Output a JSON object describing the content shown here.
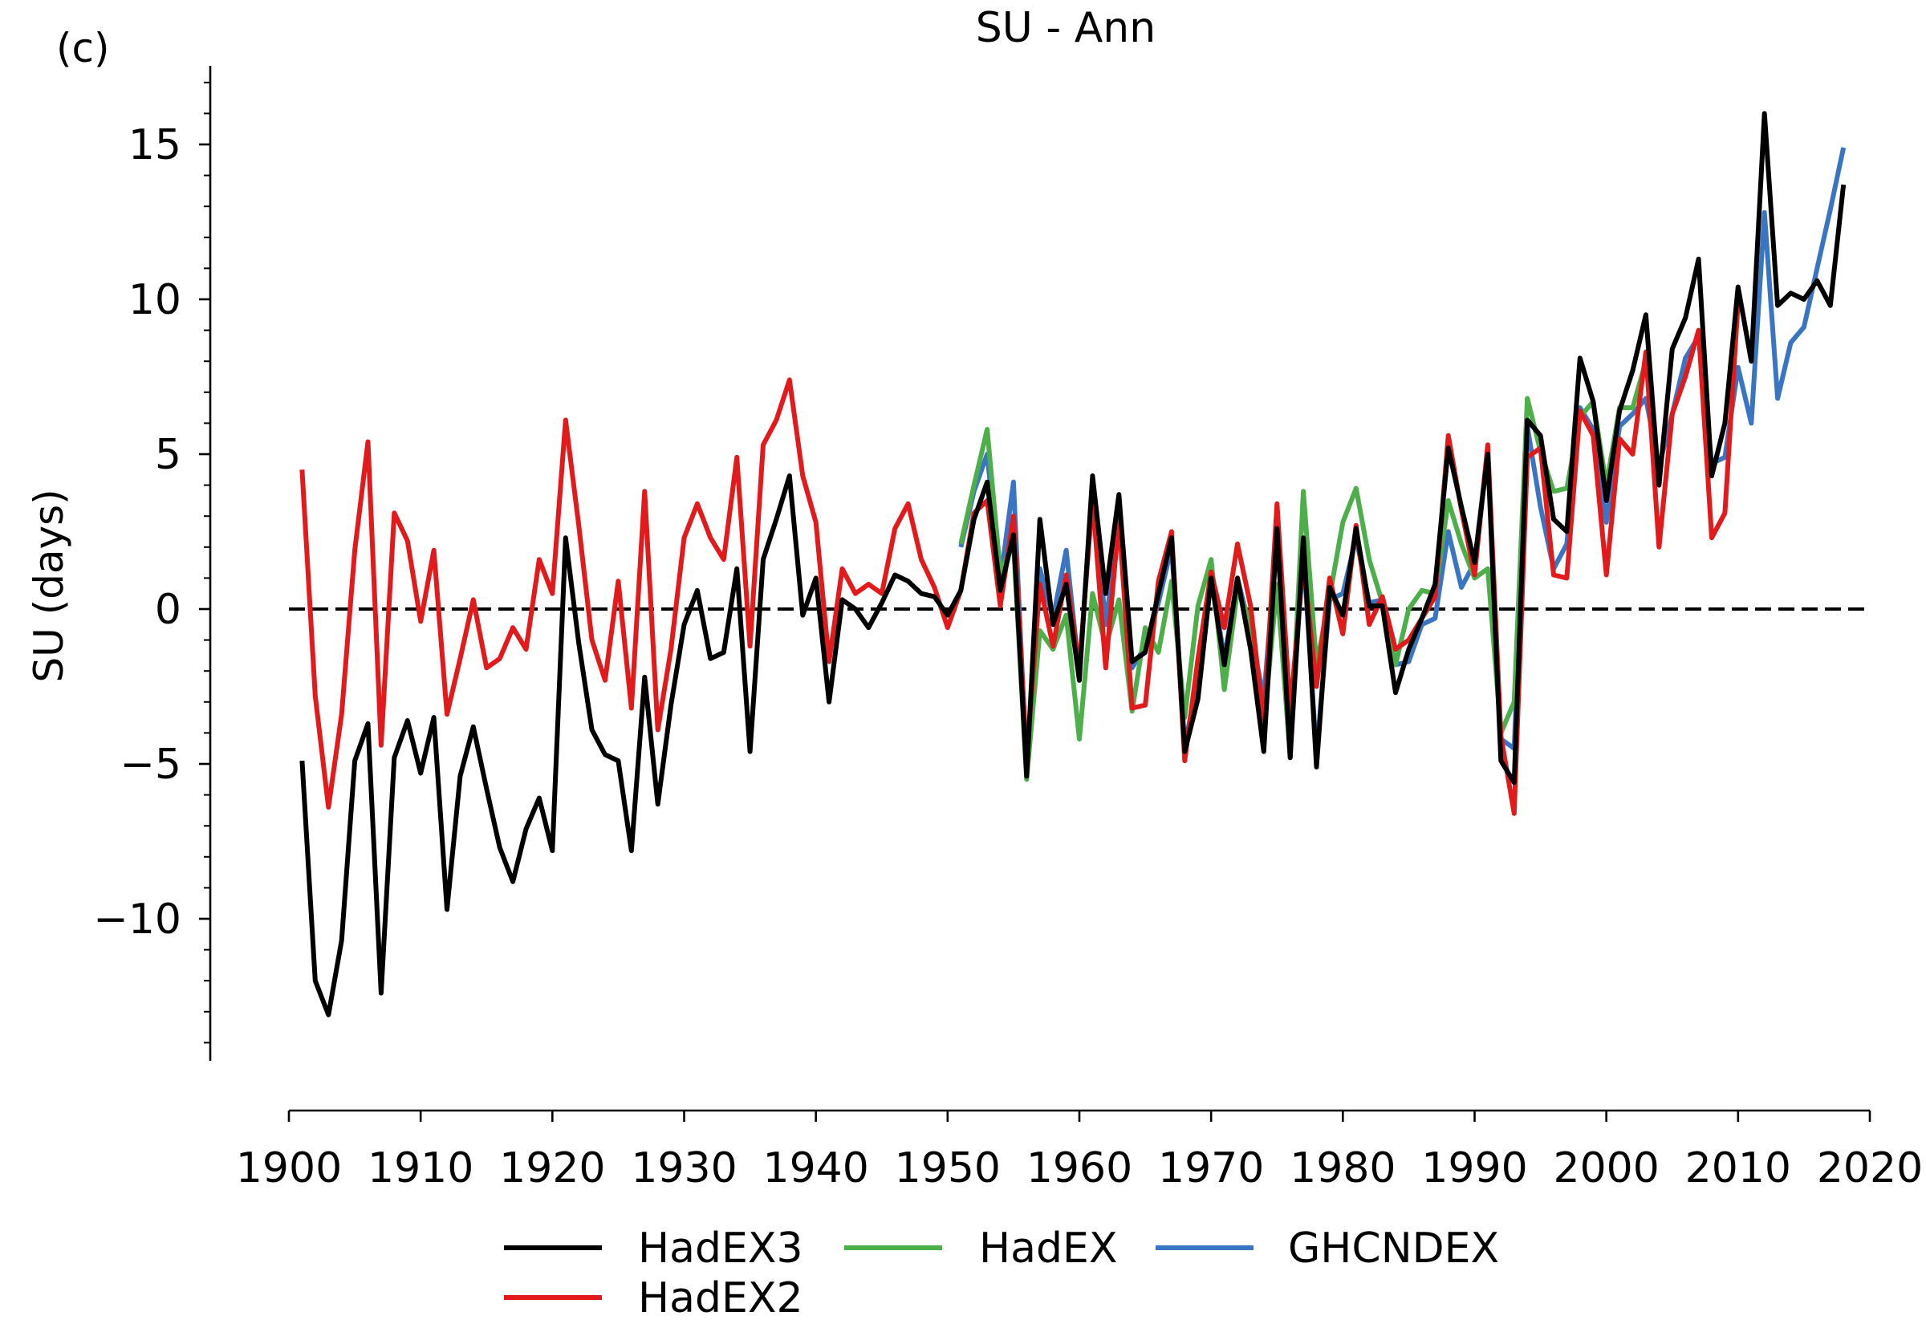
{
  "panel_label": "(c)",
  "chart_data": {
    "type": "line",
    "title": "SU - Ann",
    "xlabel": "",
    "ylabel": "SU (days)",
    "xlim": [
      1900,
      2020
    ],
    "ylim": [
      -14.5,
      17.5
    ],
    "xticks": [
      1900,
      1910,
      1920,
      1930,
      1940,
      1950,
      1960,
      1970,
      1980,
      1990,
      2000,
      2010,
      2020
    ],
    "yticks": [
      -10,
      -5,
      0,
      5,
      10,
      15
    ],
    "ytick_labels": [
      "−10",
      "−5",
      "0",
      "5",
      "10",
      "15"
    ],
    "reference_line": {
      "y": 0,
      "style": "dashed",
      "color": "#000000"
    },
    "grid": false,
    "legend": {
      "placement": "bottom-center",
      "ncol": 3
    },
    "series": [
      {
        "name": "HadEX3",
        "color": "#000000",
        "x": [
          1901,
          1902,
          1903,
          1904,
          1905,
          1906,
          1907,
          1908,
          1909,
          1910,
          1911,
          1912,
          1913,
          1914,
          1915,
          1916,
          1917,
          1918,
          1919,
          1920,
          1921,
          1922,
          1923,
          1924,
          1925,
          1926,
          1927,
          1928,
          1929,
          1930,
          1931,
          1932,
          1933,
          1934,
          1935,
          1936,
          1937,
          1938,
          1939,
          1940,
          1941,
          1942,
          1943,
          1944,
          1945,
          1946,
          1947,
          1948,
          1949,
          1950,
          1951,
          1952,
          1953,
          1954,
          1955,
          1956,
          1957,
          1958,
          1959,
          1960,
          1961,
          1962,
          1963,
          1964,
          1965,
          1966,
          1967,
          1968,
          1969,
          1970,
          1971,
          1972,
          1973,
          1974,
          1975,
          1976,
          1977,
          1978,
          1979,
          1980,
          1981,
          1982,
          1983,
          1984,
          1985,
          1986,
          1987,
          1988,
          1989,
          1990,
          1991,
          1992,
          1993,
          1994,
          1995,
          1996,
          1997,
          1998,
          1999,
          2000,
          2001,
          2002,
          2003,
          2004,
          2005,
          2006,
          2007,
          2008,
          2009,
          2010,
          2011,
          2012,
          2013,
          2014,
          2015,
          2016,
          2017,
          2018
        ],
        "y": [
          -4.9,
          -12,
          -13.1,
          -10.7,
          -4.9,
          -3.7,
          -12.4,
          -4.8,
          -3.6,
          -5.3,
          -3.5,
          -9.7,
          -5.4,
          -3.8,
          -5.8,
          -7.7,
          -8.8,
          -7.1,
          -6.1,
          -7.8,
          2.3,
          -1.1,
          -3.9,
          -4.7,
          -4.9,
          -7.8,
          -2.2,
          -6.3,
          -3.1,
          -0.5,
          0.6,
          -1.6,
          -1.4,
          1.3,
          -4.6,
          1.6,
          2.9,
          4.3,
          -0.2,
          1,
          -3,
          0.3,
          0,
          -0.6,
          0.2,
          1.1,
          0.9,
          0.5,
          0.4,
          -0.2,
          0.6,
          2.9,
          4.1,
          0.6,
          2.4,
          -5.4,
          2.9,
          -0.5,
          0.8,
          -2.3,
          4.3,
          0.5,
          3.7,
          -1.7,
          -1.4,
          0.5,
          2.3,
          -4.6,
          -2.9,
          1,
          -1.8,
          1,
          -1.3,
          -4.6,
          2.6,
          -4.8,
          2.3,
          -5.1,
          0.7,
          -0.2,
          2.6,
          0.1,
          0.1,
          -2.7,
          -1.3,
          -0.3,
          0.8,
          5.2,
          3.3,
          1.5,
          5,
          -4.9,
          -5.6,
          6.1,
          5.6,
          2.9,
          2.5,
          8.1,
          6.7,
          3.5,
          6.4,
          7.7,
          9.5,
          4,
          8.4,
          9.4,
          11.3,
          4.3,
          6,
          10.4,
          8,
          16,
          9.8,
          10.2,
          10,
          10.6,
          9.8,
          13.7
        ]
      },
      {
        "name": "HadEX2",
        "color": "#e31a1c",
        "x": [
          1901,
          1902,
          1903,
          1904,
          1905,
          1906,
          1907,
          1908,
          1909,
          1910,
          1911,
          1912,
          1913,
          1914,
          1915,
          1916,
          1917,
          1918,
          1919,
          1920,
          1921,
          1922,
          1923,
          1924,
          1925,
          1926,
          1927,
          1928,
          1929,
          1930,
          1931,
          1932,
          1933,
          1934,
          1935,
          1936,
          1937,
          1938,
          1939,
          1940,
          1941,
          1942,
          1943,
          1944,
          1945,
          1946,
          1947,
          1948,
          1949,
          1950,
          1951,
          1952,
          1953,
          1954,
          1955,
          1956,
          1957,
          1958,
          1959,
          1960,
          1961,
          1962,
          1963,
          1964,
          1965,
          1966,
          1967,
          1968,
          1969,
          1970,
          1971,
          1972,
          1973,
          1974,
          1975,
          1976,
          1977,
          1978,
          1979,
          1980,
          1981,
          1982,
          1983,
          1984,
          1985,
          1986,
          1987,
          1988,
          1989,
          1990,
          1991,
          1992,
          1993,
          1994,
          1995,
          1996,
          1997,
          1998,
          1999,
          2000,
          2001,
          2002,
          2003,
          2004,
          2005,
          2006,
          2007,
          2008,
          2009,
          2010
        ],
        "y": [
          4.5,
          -2.8,
          -6.4,
          -3.4,
          1.9,
          5.4,
          -4.4,
          3.1,
          2.2,
          -0.4,
          1.9,
          -3.4,
          -1.6,
          0.3,
          -1.9,
          -1.6,
          -0.6,
          -1.3,
          1.6,
          0.5,
          6.1,
          2.7,
          -1,
          -2.3,
          0.9,
          -3.2,
          3.8,
          -3.9,
          -1.3,
          2.3,
          3.4,
          2.3,
          1.6,
          4.9,
          -1.2,
          5.3,
          6.1,
          7.4,
          4.3,
          2.8,
          -1.7,
          1.3,
          0.5,
          0.8,
          0.5,
          2.6,
          3.4,
          1.6,
          0.7,
          -0.6,
          0.6,
          3.1,
          3.5,
          0.1,
          3,
          -4.8,
          0.8,
          -1.2,
          1.1,
          -1.9,
          3.6,
          -1.9,
          2.9,
          -3.2,
          -3.1,
          0.9,
          2.5,
          -4.9,
          -1.6,
          1.2,
          -0.6,
          2.1,
          0.1,
          -3.7,
          3.4,
          -3.3,
          1.5,
          -2.5,
          1,
          -0.8,
          2.7,
          -0.5,
          0.4,
          -1.3,
          -1,
          -0.3,
          0.4,
          5.6,
          3.2,
          1.1,
          5.3,
          -4.1,
          -6.6,
          4.9,
          5.2,
          1.1,
          1,
          6.4,
          5.6,
          1.1,
          5.5,
          5,
          8.3,
          2,
          6.3,
          7.5,
          9,
          2.3,
          3.1,
          9.9
        ]
      },
      {
        "name": "HadEX",
        "color": "#4daf4a",
        "x": [
          1951,
          1952,
          1953,
          1954,
          1955,
          1956,
          1957,
          1958,
          1959,
          1960,
          1961,
          1962,
          1963,
          1964,
          1965,
          1966,
          1967,
          1968,
          1969,
          1970,
          1971,
          1972,
          1973,
          1974,
          1975,
          1976,
          1977,
          1978,
          1979,
          1980,
          1981,
          1982,
          1983,
          1984,
          1985,
          1986,
          1987,
          1988,
          1989,
          1990,
          1991,
          1992,
          1993,
          1994,
          1995,
          1996,
          1997,
          1998,
          1999,
          2000,
          2001,
          2002,
          2003
        ],
        "y": [
          2.1,
          4,
          5.8,
          1.2,
          2.1,
          -5.5,
          -0.7,
          -1.3,
          -0.2,
          -4.2,
          0.5,
          -1.2,
          0.3,
          -3.3,
          -0.6,
          -1.4,
          0.9,
          -3.5,
          0.1,
          1.6,
          -2.6,
          0.6,
          -0.4,
          -3.8,
          0.8,
          -4.8,
          3.8,
          -1.8,
          0.4,
          2.8,
          3.9,
          1.6,
          0.2,
          -1.8,
          0,
          0.6,
          0.5,
          3.5,
          2.1,
          1,
          1.3,
          -4,
          -3,
          6.8,
          5.1,
          3.8,
          3.9,
          6.2,
          6.7,
          4,
          6.5,
          6.5,
          8
        ]
      },
      {
        "name": "GHCNDEX",
        "color": "#3a75c4",
        "x": [
          1951,
          1952,
          1953,
          1954,
          1955,
          1956,
          1957,
          1958,
          1959,
          1960,
          1961,
          1962,
          1963,
          1964,
          1965,
          1966,
          1967,
          1968,
          1969,
          1970,
          1971,
          1972,
          1973,
          1974,
          1975,
          1976,
          1977,
          1978,
          1979,
          1980,
          1981,
          1982,
          1983,
          1984,
          1985,
          1986,
          1987,
          1988,
          1989,
          1990,
          1991,
          1992,
          1993,
          1994,
          1995,
          1996,
          1997,
          1998,
          1999,
          2000,
          2001,
          2002,
          2003,
          2004,
          2005,
          2006,
          2007,
          2008,
          2009,
          2010,
          2011,
          2012,
          2013,
          2014,
          2015,
          2016,
          2017,
          2018
        ],
        "y": [
          2,
          3.8,
          5,
          0.9,
          4.1,
          -5.2,
          1.3,
          -0.3,
          1.9,
          -2.1,
          4,
          -0.5,
          2.8,
          -1.9,
          -1.2,
          0.2,
          2,
          -4.4,
          -2.3,
          1.1,
          -1.6,
          1,
          -0.7,
          -2.9,
          2.4,
          -4.3,
          1.8,
          -4.7,
          0.3,
          0.5,
          2.3,
          0.2,
          0.3,
          -1.8,
          -1.7,
          -0.5,
          -0.3,
          2.5,
          0.7,
          1.5,
          5.1,
          -4.2,
          -4.5,
          5.9,
          3.3,
          1.3,
          2.1,
          6.5,
          5.8,
          2.8,
          5.9,
          6.3,
          6.8,
          4.6,
          6.3,
          8.1,
          8.8,
          4.7,
          4.9,
          7.8,
          6,
          12.8,
          6.8,
          8.6,
          9.1,
          11,
          12.9,
          14.9
        ]
      }
    ]
  }
}
